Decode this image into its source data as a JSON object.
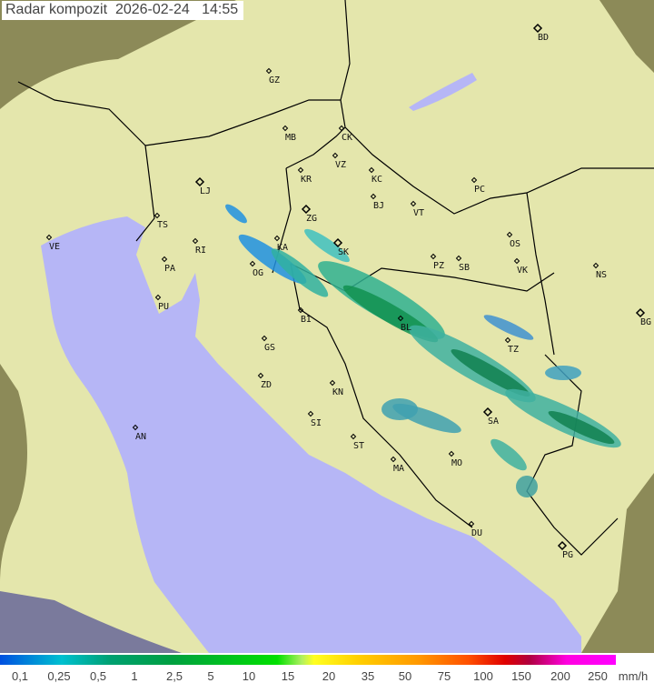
{
  "header": {
    "title": "Radar kompozit",
    "date": "2026-02-24",
    "time": "14:55"
  },
  "map": {
    "colors": {
      "sea": "#b6b6f6",
      "land_in_range": "#e4e6ac",
      "outside_range": "#8c8a58",
      "border": "#000000"
    },
    "cities": [
      {
        "code": "BD"
      },
      {
        "code": "GZ"
      },
      {
        "code": "MB"
      },
      {
        "code": "CK"
      },
      {
        "code": "VZ"
      },
      {
        "code": "KR"
      },
      {
        "code": "KC"
      },
      {
        "code": "PC"
      },
      {
        "code": "LJ"
      },
      {
        "code": "BJ"
      },
      {
        "code": "VT"
      },
      {
        "code": "ZG"
      },
      {
        "code": "TS"
      },
      {
        "code": "VE"
      },
      {
        "code": "OS"
      },
      {
        "code": "SK"
      },
      {
        "code": "KA"
      },
      {
        "code": "RI"
      },
      {
        "code": "PZ"
      },
      {
        "code": "SB"
      },
      {
        "code": "VK"
      },
      {
        "code": "NS"
      },
      {
        "code": "PA"
      },
      {
        "code": "OG"
      },
      {
        "code": "PU"
      },
      {
        "code": "BI"
      },
      {
        "code": "BL"
      },
      {
        "code": "BG"
      },
      {
        "code": "TZ"
      },
      {
        "code": "GS"
      },
      {
        "code": "ZD"
      },
      {
        "code": "KN"
      },
      {
        "code": "SA"
      },
      {
        "code": "SI"
      },
      {
        "code": "AN"
      },
      {
        "code": "ST"
      },
      {
        "code": "MA"
      },
      {
        "code": "MO"
      },
      {
        "code": "DU"
      },
      {
        "code": "PG"
      }
    ]
  },
  "legend": {
    "unit": "mm/h",
    "labels": [
      "0,1",
      "0,25",
      "0,5",
      "1",
      "2,5",
      "5",
      "10",
      "15",
      "20",
      "35",
      "50",
      "75",
      "100",
      "150",
      "200",
      "250"
    ],
    "colors": [
      "#0050e0",
      "#00c0d0",
      "#00a070",
      "#00a040",
      "#00e000",
      "#ffff20",
      "#ff9800",
      "#e00000",
      "#ff00ff"
    ]
  }
}
